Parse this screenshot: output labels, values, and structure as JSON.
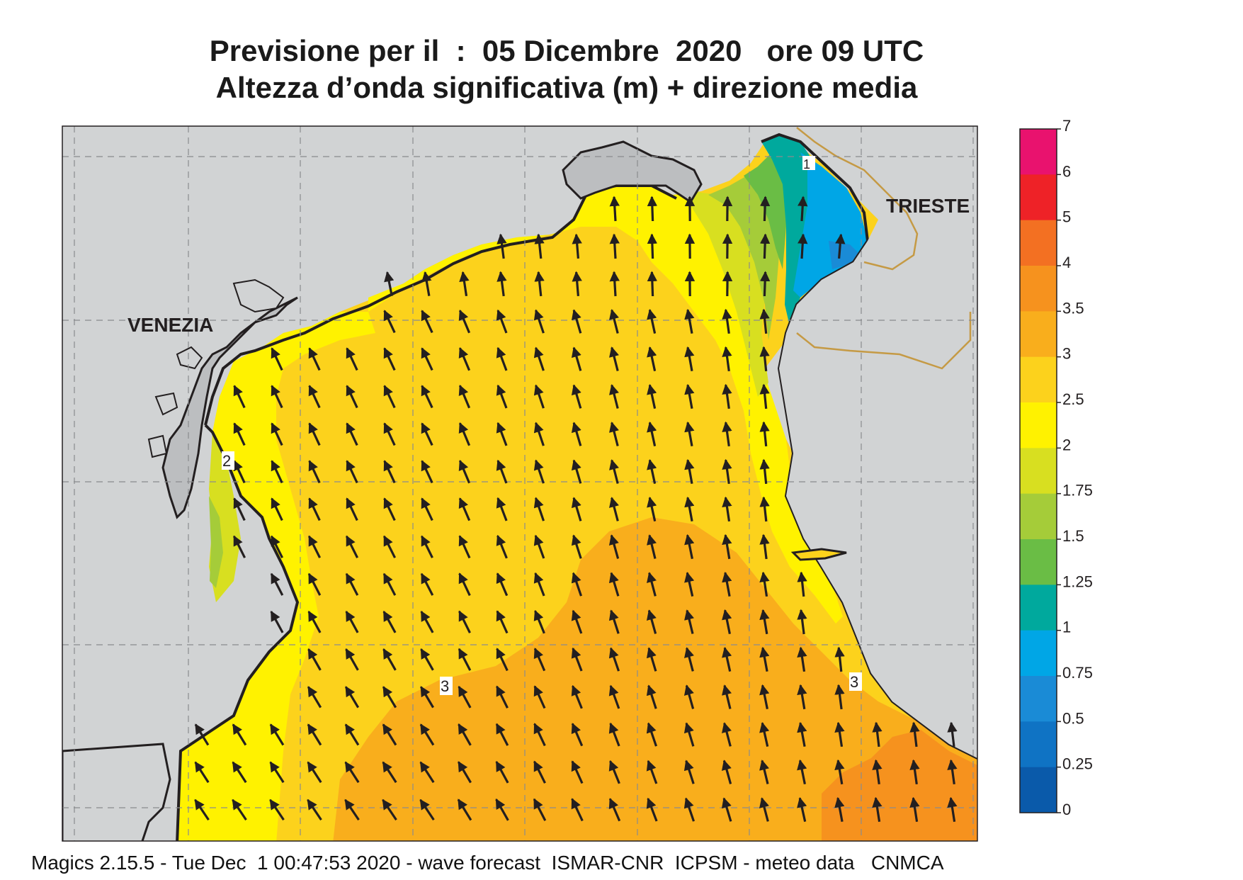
{
  "title": {
    "line1": "Previsione per il  :  05 Dicembre  2020   ore 09 UTC",
    "line2": "Altezza d’onda significativa (m) + direzione media"
  },
  "places": {
    "venezia": "VENEZIA",
    "trieste": "TRIESTE"
  },
  "contour_labels": [
    "2",
    "3",
    "3",
    "1"
  ],
  "legend": {
    "ticks": [
      "7",
      "6",
      "5",
      "4",
      "3.5",
      "3",
      "2.5",
      "2",
      "1.75",
      "1.5",
      "1.25",
      "1",
      "0.75",
      "0.5",
      "0.25",
      "0"
    ],
    "colors": [
      "#e9126e",
      "#ee2227",
      "#f37022",
      "#f6921e",
      "#f9ae1c",
      "#fcd21c",
      "#fff200",
      "#d8df20",
      "#a5cc39",
      "#6abd45",
      "#00a99d",
      "#00a6e6",
      "#1a8bd6",
      "#0f73c4",
      "#0a5aaa"
    ]
  },
  "colors": {
    "land": "#d1d3d4",
    "arrow": "#231f20",
    "coast": "#231f20",
    "border": "#c59a45"
  },
  "footer": "Magics 2.15.5 - Tue Dec  1 00:47:53 2020 - wave forecast  ISMAR-CNR  ICPSM - meteo data   CNMCA"
}
